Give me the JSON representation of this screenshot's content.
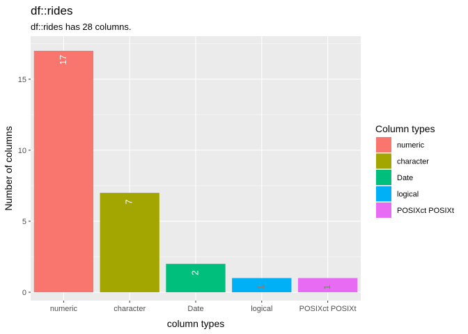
{
  "chart_data": {
    "type": "bar",
    "title": "df::rides",
    "subtitle": "df::rides has 28 columns.",
    "xlabel": "column types",
    "ylabel": "Number of columns",
    "categories": [
      "numeric",
      "character",
      "Date",
      "logical",
      "POSIXct POSIXt"
    ],
    "values": [
      17,
      7,
      2,
      1,
      1
    ],
    "data_labels": [
      "17",
      "7",
      "2",
      "1",
      "1"
    ],
    "colors": [
      "#F8766D",
      "#A3A500",
      "#00BF7D",
      "#00B0F6",
      "#E76BF3"
    ],
    "ylim": [
      0,
      17.85
    ],
    "yticks": [
      0,
      5,
      10,
      15
    ],
    "ytick_labels": [
      "0",
      "5",
      "10",
      "15"
    ],
    "grid": true,
    "legend": {
      "title": "Column types",
      "position": "right",
      "entries": [
        "numeric",
        "character",
        "Date",
        "logical",
        "POSIXct POSIXt"
      ]
    }
  }
}
